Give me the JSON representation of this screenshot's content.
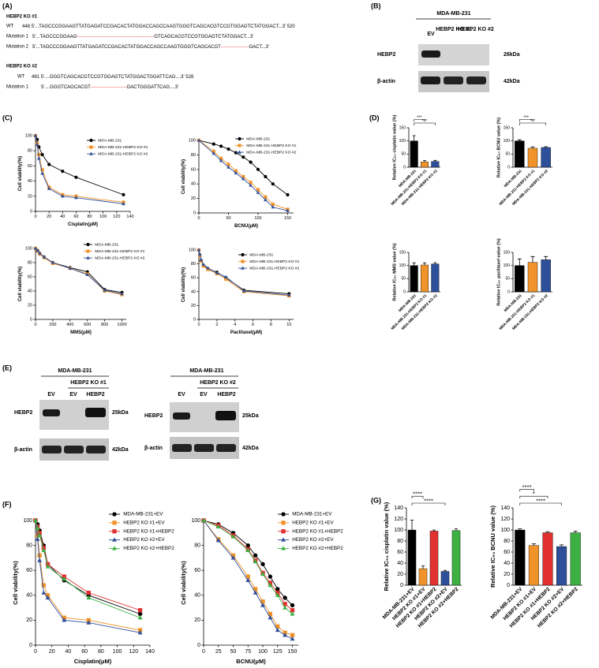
{
  "panel_labels": [
    "(A)",
    "(B)",
    "(C)",
    "(D)",
    "(E)",
    "(F)",
    "(G)"
  ],
  "sequences": {
    "ko1_title": "HEBP2 KO #1",
    "ko1_lines": [
      {
        "label": "WT",
        "seq": "448 5'...TAGCCCGGAAGTTATGAGATCCGACACTATGGACCAGCCAAGTGGGTCAGCACGTCCGTGGAGTCTATGGACT...3' 520"
      },
      {
        "label": "Mutation 1",
        "seq": "5'...TAGCCCGGAAG-------------------------------------------------GTCAGCACGTCCGTGGAGTCTATGGACT...3'"
      },
      {
        "label": "Mutation 2",
        "seq": "5'...TAGCCCGGAAGTTATGAGATCCGACACTATGGACCAGCCAAGTGGGTCAGCACGT------------------GACT...3'"
      }
    ],
    "ko2_title": "HEBP2 KO #2",
    "ko2_lines": [
      {
        "label": "WT",
        "seq": "491 5'....GGGTCAGCACGTCCGTGGAGTCTATGGACTGGATTCAG....3' 528"
      },
      {
        "label": "Mutation 1",
        "seq": "5'....GGGTCAGCACGT-----------------------GACTGGGATTCAG....3'"
      }
    ]
  },
  "blot_b": {
    "cell_line": "MDA-MB-231",
    "lanes": [
      "EV",
      "HEBP2 KO #1",
      "HEBP2 KO #2"
    ],
    "rows": [
      "HEBP2",
      "β-actin"
    ],
    "sizes": [
      "26kDa",
      "42kDa"
    ]
  },
  "blot_e": [
    {
      "cell_line": "MDA-MB-231",
      "group": "HEBP2 KO #1",
      "lanes": [
        "EV",
        "EV",
        "HEBP2"
      ],
      "rows": [
        "HEBP2",
        "β-actin"
      ],
      "sizes": [
        "25kDa",
        "42kDa"
      ]
    },
    {
      "cell_line": "MDA-MB-231",
      "group": "HEBP2 KO #2",
      "lanes": [
        "EV",
        "EV",
        "HEBP2"
      ],
      "rows": [
        "HEBP2",
        "β-actin"
      ],
      "sizes": [
        "25kDa",
        "42kDa"
      ]
    }
  ],
  "chart_data": [
    {
      "type": "line",
      "x_label": "Cisplatin(μM)",
      "y_label": "Cell viability(%)",
      "x": [
        0,
        2.5,
        5,
        10,
        20,
        40,
        60,
        130
      ],
      "xlim": [
        0,
        140
      ],
      "ylim": [
        0,
        100
      ],
      "xticks": [
        0,
        20,
        40,
        60,
        80,
        100,
        120,
        140
      ],
      "yticks": [
        0,
        20,
        40,
        60,
        80,
        100
      ],
      "series": [
        {
          "name": "MDA-MB-231",
          "color": "#000000",
          "marker": "circle",
          "values": [
            100,
            95,
            85,
            75,
            62,
            53,
            45,
            22
          ]
        },
        {
          "name": "MDA-MB-231-HEBP2 KO #1",
          "color": "#f0932b",
          "marker": "square",
          "values": [
            100,
            90,
            75,
            55,
            32,
            22,
            20,
            12
          ]
        },
        {
          "name": "MDA-MB-231-HEBP2 KO #2",
          "color": "#2e4f9a",
          "marker": "triangle",
          "values": [
            100,
            88,
            70,
            50,
            30,
            20,
            18,
            10
          ]
        }
      ]
    },
    {
      "type": "line",
      "x_label": "BCNU(μM)",
      "y_label": "Cell viability(%)",
      "x": [
        0,
        25,
        37.5,
        50,
        62.5,
        75,
        87.5,
        100,
        112.5,
        125,
        150
      ],
      "xlim": [
        0,
        160
      ],
      "ylim": [
        0,
        100
      ],
      "xticks": [
        0,
        50,
        100,
        150
      ],
      "yticks": [
        0,
        20,
        40,
        60,
        80,
        100
      ],
      "series": [
        {
          "name": "MDA-MB-231",
          "color": "#000000",
          "marker": "circle",
          "values": [
            100,
            95,
            92,
            88,
            83,
            77,
            70,
            60,
            50,
            40,
            25
          ]
        },
        {
          "name": "MDA-MB-231-HEBP2 KO #1",
          "color": "#f0932b",
          "marker": "square",
          "values": [
            100,
            85,
            75,
            67,
            58,
            50,
            42,
            32,
            22,
            12,
            5
          ]
        },
        {
          "name": "MDA-MB-231-HEBP2 KO #2",
          "color": "#2e4f9a",
          "marker": "triangle",
          "values": [
            100,
            82,
            72,
            63,
            55,
            47,
            38,
            28,
            18,
            8,
            3
          ]
        }
      ]
    },
    {
      "type": "line",
      "x_label": "MMS(μM)",
      "y_label": "Cell viability(%)",
      "x": [
        0,
        25,
        50,
        100,
        200,
        400,
        600,
        800,
        1000
      ],
      "xlim": [
        0,
        1050
      ],
      "ylim": [
        0,
        100
      ],
      "xticks": [
        0,
        200,
        400,
        600,
        800,
        1000
      ],
      "yticks": [
        0,
        20,
        40,
        60,
        80,
        100
      ],
      "series": [
        {
          "name": "MDA-MB-231",
          "color": "#000000",
          "marker": "circle",
          "values": [
            100,
            97,
            93,
            88,
            80,
            73,
            67,
            42,
            38
          ]
        },
        {
          "name": "MDA-MB-231-HEBP2 KO #1",
          "color": "#f0932b",
          "marker": "square",
          "values": [
            100,
            96,
            92,
            87,
            79,
            72,
            64,
            40,
            35
          ]
        },
        {
          "name": "MDA-MB-231-HEBP2 KO #2",
          "color": "#2e4f9a",
          "marker": "triangle",
          "values": [
            100,
            97,
            93,
            88,
            80,
            72,
            63,
            41,
            36
          ]
        }
      ]
    },
    {
      "type": "line",
      "x_label": "Paclitaxel(μM)",
      "y_label": "Cell viability(%)",
      "x": [
        0,
        0.1,
        0.25,
        0.5,
        1,
        2,
        3,
        5,
        10
      ],
      "xlim": [
        0,
        10.5
      ],
      "ylim": [
        0,
        100
      ],
      "xticks": [
        0,
        2,
        4,
        6,
        8,
        10
      ],
      "yticks": [
        0,
        20,
        40,
        60,
        80,
        100
      ],
      "series": [
        {
          "name": "MDA-MB-231",
          "color": "#000000",
          "marker": "circle",
          "values": [
            100,
            93,
            85,
            78,
            73,
            68,
            60,
            42,
            37
          ]
        },
        {
          "name": "MDA-MB-231-HEBP2 KO #1",
          "color": "#f0932b",
          "marker": "square",
          "values": [
            100,
            92,
            84,
            77,
            72,
            66,
            58,
            40,
            34
          ]
        },
        {
          "name": "MDA-MB-231-HEBP2 KO #2",
          "color": "#2e4f9a",
          "marker": "triangle",
          "values": [
            100,
            94,
            86,
            79,
            74,
            67,
            61,
            41,
            35
          ]
        }
      ]
    },
    {
      "type": "bar",
      "y_label": "Relative IC₅₀ cisplatin value (%)",
      "categories": [
        "MDA-MB-231",
        "MDA-MB-231-HEBP2 KO #1",
        "MDA-MB-231-HEBP2 KO #2"
      ],
      "values": [
        100,
        20,
        22
      ],
      "errors": [
        20,
        5,
        4
      ],
      "colors": [
        "#000000",
        "#f0932b",
        "#2e4f9a"
      ],
      "ylim": [
        0,
        150
      ],
      "yticks": [
        0,
        50,
        100,
        150
      ],
      "significance": [
        {
          "label": "***",
          "pair": [
            0,
            1
          ],
          "color": "#e03030"
        },
        {
          "label": "***",
          "pair": [
            0,
            2
          ],
          "color": "#2e4f9a"
        }
      ]
    },
    {
      "type": "bar",
      "y_label": "Relative IC₅₀ BCNU value (%)",
      "categories": [
        "MDA-MB-231",
        "MDA-MB-231-HEBP2 KO #1",
        "MDA-MB-231-HEBP2 KO #2"
      ],
      "values": [
        100,
        72,
        75
      ],
      "errors": [
        4,
        5,
        3
      ],
      "colors": [
        "#000000",
        "#f0932b",
        "#2e4f9a"
      ],
      "ylim": [
        0,
        150
      ],
      "yticks": [
        0,
        50,
        100,
        150
      ],
      "significance": [
        {
          "label": "***",
          "pair": [
            0,
            1
          ],
          "color": "#e03030"
        },
        {
          "label": "***",
          "pair": [
            0,
            2
          ],
          "color": "#2e4f9a"
        }
      ]
    },
    {
      "type": "bar",
      "y_label": "Relative IC₅₀ MMS value (%)",
      "categories": [
        "MDA-MB-231",
        "MDA-MB-231-HEBP2 KO #1",
        "MDA-MB-231-HEBP2 KO #2"
      ],
      "values": [
        100,
        102,
        106
      ],
      "errors": [
        10,
        8,
        5
      ],
      "colors": [
        "#000000",
        "#f0932b",
        "#2e4f9a"
      ],
      "ylim": [
        0,
        150
      ],
      "yticks": [
        0,
        50,
        100,
        150
      ],
      "significance": []
    },
    {
      "type": "bar",
      "y_label": "Relative IC₅₀ paclitaxel value (%)",
      "categories": [
        "MDA-MB-231",
        "MDA-MB-231-HEBP2 KO #1",
        "MDA-MB-231-HEBP2 KO #2"
      ],
      "values": [
        100,
        112,
        122
      ],
      "errors": [
        25,
        22,
        12
      ],
      "colors": [
        "#000000",
        "#f0932b",
        "#2e4f9a"
      ],
      "ylim": [
        0,
        150
      ],
      "yticks": [
        0,
        50,
        100,
        150
      ],
      "significance": []
    },
    {
      "type": "line",
      "x_label": "Cisplatin(μM)",
      "y_label": "Cell viability(%)",
      "x": [
        0,
        2.5,
        5,
        10,
        15,
        35,
        65,
        128
      ],
      "xlim": [
        0,
        140
      ],
      "ylim": [
        0,
        100
      ],
      "xticks": [
        0,
        20,
        40,
        60,
        80,
        100,
        120,
        140
      ],
      "yticks": [
        0,
        20,
        40,
        60,
        80,
        100
      ],
      "series": [
        {
          "name": "MDA-MB-231+EV",
          "color": "#000000",
          "marker": "circle",
          "values": [
            100,
            97,
            92,
            80,
            65,
            52,
            40,
            25
          ]
        },
        {
          "name": "HEBP2 KO #1+EV",
          "color": "#f0932b",
          "marker": "square",
          "values": [
            100,
            88,
            72,
            48,
            40,
            22,
            20,
            12
          ]
        },
        {
          "name": "HEBP2 KO #1+HEBP2",
          "color": "#e03030",
          "marker": "square",
          "values": [
            100,
            95,
            90,
            78,
            65,
            55,
            42,
            28
          ]
        },
        {
          "name": "HEBP2 KO #2+EV",
          "color": "#2e4f9a",
          "marker": "triangle",
          "values": [
            100,
            85,
            68,
            42,
            38,
            20,
            18,
            10
          ]
        },
        {
          "name": "HEBP2 KO #2+HEBP2",
          "color": "#3cb043",
          "marker": "triangle",
          "values": [
            100,
            94,
            88,
            76,
            63,
            53,
            38,
            22
          ]
        }
      ]
    },
    {
      "type": "line",
      "x_label": "BCNU(μM)",
      "y_label": "Cell viability(%)",
      "x": [
        0,
        25,
        50,
        75,
        87.5,
        100,
        112.5,
        125,
        137.5,
        150
      ],
      "xlim": [
        0,
        160
      ],
      "ylim": [
        0,
        100
      ],
      "xticks": [
        0,
        25,
        50,
        75,
        100,
        125,
        150
      ],
      "yticks": [
        0,
        20,
        40,
        60,
        80,
        100
      ],
      "series": [
        {
          "name": "MDA-MB-231+EV",
          "color": "#000000",
          "marker": "circle",
          "values": [
            100,
            97,
            90,
            80,
            72,
            65,
            55,
            45,
            38,
            32
          ]
        },
        {
          "name": "HEBP2 KO #1+EV",
          "color": "#f0932b",
          "marker": "square",
          "values": [
            100,
            85,
            72,
            55,
            45,
            35,
            25,
            15,
            10,
            8
          ]
        },
        {
          "name": "HEBP2 KO #1+HEBP2",
          "color": "#e03030",
          "marker": "square",
          "values": [
            100,
            96,
            88,
            77,
            68,
            58,
            50,
            42,
            33,
            28
          ]
        },
        {
          "name": "HEBP2 KO #2+EV",
          "color": "#2e4f9a",
          "marker": "triangle",
          "values": [
            100,
            84,
            70,
            52,
            42,
            32,
            22,
            12,
            8,
            5
          ]
        },
        {
          "name": "HEBP2 KO #2+HEBP2",
          "color": "#3cb043",
          "marker": "triangle",
          "values": [
            100,
            95,
            87,
            76,
            67,
            57,
            48,
            40,
            30,
            25
          ]
        }
      ]
    },
    {
      "type": "bar",
      "y_label": "Relative IC₅₀ cisplatin value (%)",
      "categories": [
        "MDA-MB-231+EV",
        "HEBP2 KO #1+EV",
        "HEBP2 KO #1+HEBP2",
        "HEBP2 KO #2+EV",
        "HEBP2 KO #2+HEBP2"
      ],
      "values": [
        100,
        30,
        98,
        25,
        99
      ],
      "errors": [
        18,
        5,
        2,
        2,
        3
      ],
      "colors": [
        "#000000",
        "#f0932b",
        "#e03030",
        "#2e4f9a",
        "#3cb043"
      ],
      "ylim": [
        0,
        140
      ],
      "yticks": [
        0,
        20,
        40,
        60,
        80,
        100,
        120,
        140
      ],
      "significance": [
        {
          "label": "****",
          "pair": [
            0,
            1
          ],
          "color": "#f0932b"
        },
        {
          "label": "****",
          "pair": [
            0,
            3
          ],
          "color": "#2e4f9a"
        }
      ]
    },
    {
      "type": "bar",
      "y_label": "Relative IC₅₀ BCNU value (%)",
      "categories": [
        "MDA-MB-231+EV",
        "HEBP2 KO #1+EV",
        "HEBP2 KO #1+HEBP2",
        "HEBP2 KO #2+EV",
        "HEBP2 KO #2+HEBP2"
      ],
      "values": [
        100,
        72,
        95,
        70,
        95
      ],
      "errors": [
        2,
        3,
        2,
        3,
        3
      ],
      "colors": [
        "#000000",
        "#f0932b",
        "#e03030",
        "#2e4f9a",
        "#3cb043"
      ],
      "ylim": [
        0,
        140
      ],
      "yticks": [
        0,
        20,
        40,
        60,
        80,
        100,
        120,
        140
      ],
      "significance": [
        {
          "label": "****",
          "pair": [
            0,
            1
          ],
          "color": "#f0932b"
        },
        {
          "label": "*",
          "pair": [
            0,
            2
          ],
          "color": "#e03030"
        },
        {
          "label": "****",
          "pair": [
            0,
            3
          ],
          "color": "#2e4f9a"
        }
      ]
    }
  ]
}
